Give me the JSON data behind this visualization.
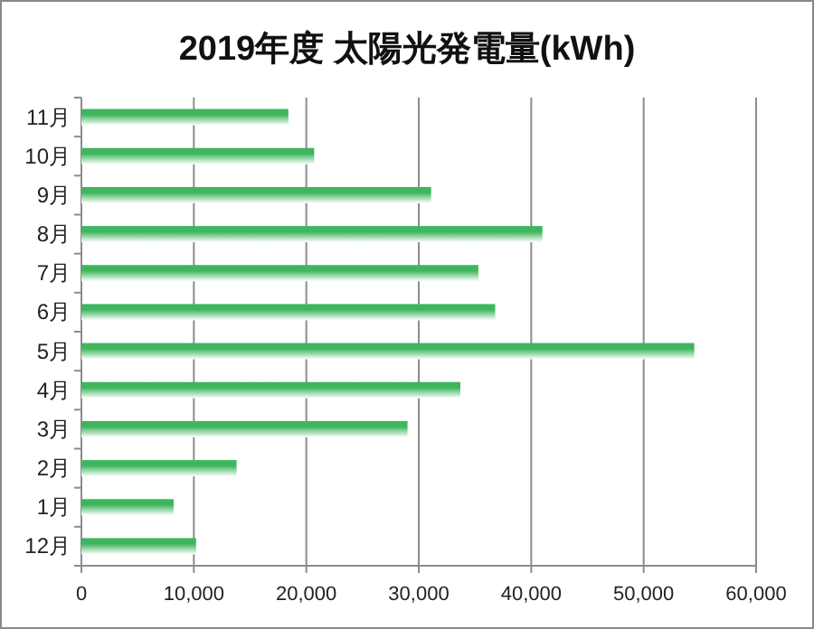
{
  "chart_data": {
    "type": "bar",
    "orientation": "horizontal",
    "title": "2019年度 太陽光発電量(kWh)",
    "categories": [
      "11月",
      "10月",
      "9月",
      "8月",
      "7月",
      "6月",
      "5月",
      "4月",
      "3月",
      "2月",
      "1月",
      "12月"
    ],
    "values": [
      18400,
      20700,
      31100,
      41000,
      35300,
      36800,
      54500,
      33700,
      29000,
      13800,
      8200,
      10200
    ],
    "color": "#3fb55e",
    "xlim": [
      0,
      60000
    ],
    "xticks": [
      {
        "value": 0,
        "label": "0"
      },
      {
        "value": 10000,
        "label": "10,000"
      },
      {
        "value": 20000,
        "label": "20,000"
      },
      {
        "value": 30000,
        "label": "30,000"
      },
      {
        "value": 40000,
        "label": "40,000"
      },
      {
        "value": 50000,
        "label": "50,000"
      },
      {
        "value": 60000,
        "label": "60,000"
      }
    ],
    "grid": "x"
  }
}
